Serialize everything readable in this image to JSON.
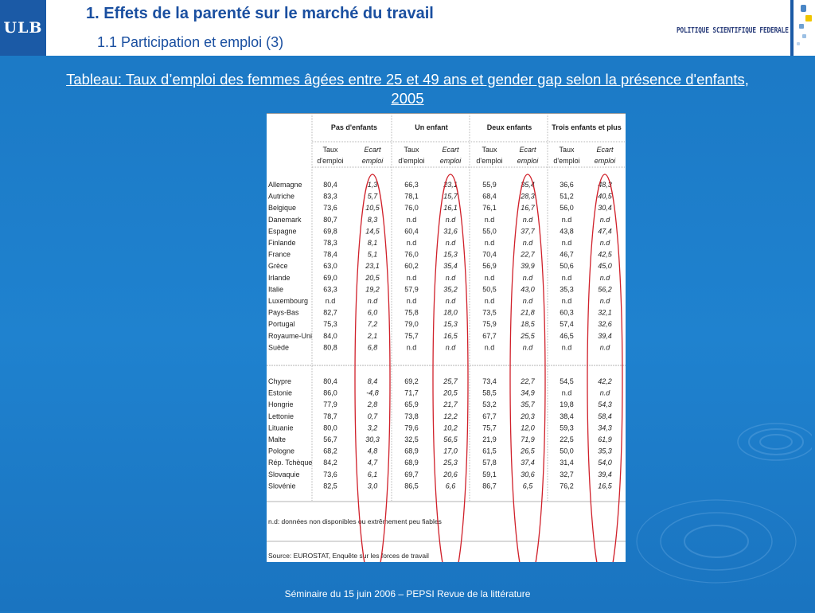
{
  "header": {
    "logo": "ULB",
    "title": "1. Effets de la parenté sur le marché du travail",
    "subtitle": "1.1 Participation et emploi (3)",
    "brand": "POLITIQUE SCIENTIFIQUE FEDERALE"
  },
  "caption": "Tableau: Taux d’emploi des femmes âgées entre 25 et 49 ans et gender gap selon la présence d'enfants, 2005",
  "table": {
    "groups": [
      "Pas d'enfants",
      "Un enfant",
      "Deux enfants",
      "Trois enfants et plus"
    ],
    "sub_a": [
      "Taux",
      "d'emploi"
    ],
    "sub_b": [
      "Ecart",
      "emploi"
    ],
    "section1": [
      [
        "Allemagne",
        "80,4",
        "1,3",
        "66,3",
        "23,1",
        "55,9",
        "35,4",
        "36,6",
        "48,3"
      ],
      [
        "Autriche",
        "83,3",
        "5,7",
        "78,1",
        "15,7",
        "68,4",
        "28,3",
        "51,2",
        "40,5"
      ],
      [
        "Belgique",
        "73,6",
        "10,5",
        "76,0",
        "16,1",
        "76,1",
        "16,7",
        "56,0",
        "30,4"
      ],
      [
        "Danemark",
        "80,7",
        "8,3",
        "n.d",
        "n.d",
        "n.d",
        "n.d",
        "n.d",
        "n.d"
      ],
      [
        "Espagne",
        "69,8",
        "14,5",
        "60,4",
        "31,6",
        "55,0",
        "37,7",
        "43,8",
        "47,4"
      ],
      [
        "Finlande",
        "78,3",
        "8,1",
        "n.d",
        "n.d",
        "n.d",
        "n.d",
        "n.d",
        "n.d"
      ],
      [
        "France",
        "78,4",
        "5,1",
        "76,0",
        "15,3",
        "70,4",
        "22,7",
        "46,7",
        "42,5"
      ],
      [
        "Grèce",
        "63,0",
        "23,1",
        "60,2",
        "35,4",
        "56,9",
        "39,9",
        "50,6",
        "45,0"
      ],
      [
        "Irlande",
        "69,0",
        "20,5",
        "n.d",
        "n.d",
        "n.d",
        "n.d",
        "n.d",
        "n.d"
      ],
      [
        "Italie",
        "63,3",
        "19,2",
        "57,9",
        "35,2",
        "50,5",
        "43,0",
        "35,3",
        "56,2"
      ],
      [
        "Luxembourg",
        "n.d",
        "n.d",
        "n.d",
        "n.d",
        "n.d",
        "n.d",
        "n.d",
        "n.d"
      ],
      [
        "Pays-Bas",
        "82,7",
        "6,0",
        "75,8",
        "18,0",
        "73,5",
        "21,8",
        "60,3",
        "32,1"
      ],
      [
        "Portugal",
        "75,3",
        "7,2",
        "79,0",
        "15,3",
        "75,9",
        "18,5",
        "57,4",
        "32,6"
      ],
      [
        "Royaume-Uni",
        "84,0",
        "2,1",
        "75,7",
        "16,5",
        "67,7",
        "25,5",
        "46,5",
        "39,4"
      ],
      [
        "Suède",
        "80,8",
        "6,8",
        "n.d",
        "n.d",
        "n.d",
        "n.d",
        "n.d",
        "n.d"
      ]
    ],
    "section2": [
      [
        "Chypre",
        "80,4",
        "8,4",
        "69,2",
        "25,7",
        "73,4",
        "22,7",
        "54,5",
        "42,2"
      ],
      [
        "Estonie",
        "86,0",
        "-4,8",
        "71,7",
        "20,5",
        "58,5",
        "34,9",
        "n.d",
        "n.d"
      ],
      [
        "Hongrie",
        "77,9",
        "2,8",
        "65,9",
        "21,7",
        "53,2",
        "35,7",
        "19,8",
        "54,3"
      ],
      [
        "Lettonie",
        "78,7",
        "0,7",
        "73,8",
        "12,2",
        "67,7",
        "20,3",
        "38,4",
        "58,4"
      ],
      [
        "Lituanie",
        "80,0",
        "3,2",
        "79,6",
        "10,2",
        "75,7",
        "12,0",
        "59,3",
        "34,3"
      ],
      [
        "Malte",
        "56,7",
        "30,3",
        "32,5",
        "56,5",
        "21,9",
        "71,9",
        "22,5",
        "61,9"
      ],
      [
        "Pologne",
        "68,2",
        "4,8",
        "68,9",
        "17,0",
        "61,5",
        "26,5",
        "50,0",
        "35,3"
      ],
      [
        "Rép. Tchèque",
        "84,2",
        "4,7",
        "68,9",
        "25,3",
        "57,8",
        "37,4",
        "31,4",
        "54,0"
      ],
      [
        "Slovaquie",
        "73,6",
        "6,1",
        "69,7",
        "20,6",
        "59,1",
        "30,6",
        "32,7",
        "39,4"
      ],
      [
        "Slovénie",
        "82,5",
        "3,0",
        "86,5",
        "6,6",
        "86,7",
        "6,5",
        "76,2",
        "16,5"
      ]
    ],
    "note": "n.d: données non disponibles ou extrêmement peu fiables",
    "source": "Source: EUROSTAT, Enquête sur les forces de travail"
  },
  "footer": "Séminaire du 15 juin 2006 – PEPSI Revue de la littérature",
  "colors": {
    "header_text": "#1a4fa0",
    "background": "#1f82cf",
    "ellipse": "#d0202a",
    "logo_bg": "#1b5aa6"
  }
}
